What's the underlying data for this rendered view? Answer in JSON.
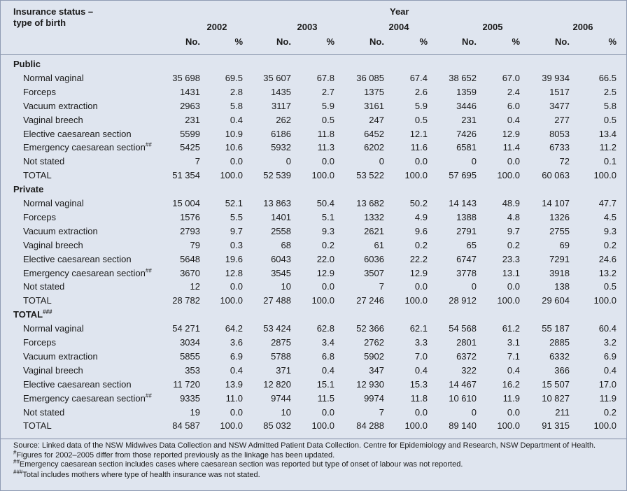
{
  "header": {
    "stub": [
      "Insurance status –",
      "type of birth"
    ],
    "group": "Year",
    "years": [
      "2002",
      "2003",
      "2004",
      "2005",
      "2006"
    ],
    "sub": [
      "No.",
      "%"
    ]
  },
  "sections": [
    {
      "title": "Public",
      "title_sup": null,
      "rows": [
        {
          "label": "Normal vaginal",
          "sup": null,
          "values": [
            "35 698",
            "69.5",
            "35 607",
            "67.8",
            "36 085",
            "67.4",
            "38 652",
            "67.0",
            "39 934",
            "66.5"
          ]
        },
        {
          "label": "Forceps",
          "sup": null,
          "values": [
            "1431",
            "2.8",
            "1435",
            "2.7",
            "1375",
            "2.6",
            "1359",
            "2.4",
            "1517",
            "2.5"
          ]
        },
        {
          "label": "Vacuum extraction",
          "sup": null,
          "values": [
            "2963",
            "5.8",
            "3117",
            "5.9",
            "3161",
            "5.9",
            "3446",
            "6.0",
            "3477",
            "5.8"
          ]
        },
        {
          "label": "Vaginal breech",
          "sup": null,
          "values": [
            "231",
            "0.4",
            "262",
            "0.5",
            "247",
            "0.5",
            "231",
            "0.4",
            "277",
            "0.5"
          ]
        },
        {
          "label": "Elective caesarean section",
          "sup": null,
          "values": [
            "5599",
            "10.9",
            "6186",
            "11.8",
            "6452",
            "12.1",
            "7426",
            "12.9",
            "8053",
            "13.4"
          ]
        },
        {
          "label": "Emergency caesarean section",
          "sup": "##",
          "values": [
            "5425",
            "10.6",
            "5932",
            "11.3",
            "6202",
            "11.6",
            "6581",
            "11.4",
            "6733",
            "11.2"
          ]
        },
        {
          "label": "Not stated",
          "sup": null,
          "values": [
            "7",
            "0.0",
            "0",
            "0.0",
            "0",
            "0.0",
            "0",
            "0.0",
            "72",
            "0.1"
          ]
        },
        {
          "label": "TOTAL",
          "sup": null,
          "values": [
            "51 354",
            "100.0",
            "52 539",
            "100.0",
            "53 522",
            "100.0",
            "57 695",
            "100.0",
            "60 063",
            "100.0"
          ]
        }
      ]
    },
    {
      "title": "Private",
      "title_sup": null,
      "rows": [
        {
          "label": "Normal vaginal",
          "sup": null,
          "values": [
            "15 004",
            "52.1",
            "13 863",
            "50.4",
            "13 682",
            "50.2",
            "14 143",
            "48.9",
            "14 107",
            "47.7"
          ]
        },
        {
          "label": "Forceps",
          "sup": null,
          "values": [
            "1576",
            "5.5",
            "1401",
            "5.1",
            "1332",
            "4.9",
            "1388",
            "4.8",
            "1326",
            "4.5"
          ]
        },
        {
          "label": "Vacuum extraction",
          "sup": null,
          "values": [
            "2793",
            "9.7",
            "2558",
            "9.3",
            "2621",
            "9.6",
            "2791",
            "9.7",
            "2755",
            "9.3"
          ]
        },
        {
          "label": "Vaginal breech",
          "sup": null,
          "values": [
            "79",
            "0.3",
            "68",
            "0.2",
            "61",
            "0.2",
            "65",
            "0.2",
            "69",
            "0.2"
          ]
        },
        {
          "label": "Elective caesarean section",
          "sup": null,
          "values": [
            "5648",
            "19.6",
            "6043",
            "22.0",
            "6036",
            "22.2",
            "6747",
            "23.3",
            "7291",
            "24.6"
          ]
        },
        {
          "label": "Emergency caesarean section",
          "sup": "##",
          "values": [
            "3670",
            "12.8",
            "3545",
            "12.9",
            "3507",
            "12.9",
            "3778",
            "13.1",
            "3918",
            "13.2"
          ]
        },
        {
          "label": "Not stated",
          "sup": null,
          "values": [
            "12",
            "0.0",
            "10",
            "0.0",
            "7",
            "0.0",
            "0",
            "0.0",
            "138",
            "0.5"
          ]
        },
        {
          "label": "TOTAL",
          "sup": null,
          "values": [
            "28 782",
            "100.0",
            "27 488",
            "100.0",
            "27 246",
            "100.0",
            "28 912",
            "100.0",
            "29 604",
            "100.0"
          ]
        }
      ]
    },
    {
      "title": "TOTAL",
      "title_sup": "###",
      "rows": [
        {
          "label": "Normal vaginal",
          "sup": null,
          "values": [
            "54 271",
            "64.2",
            "53 424",
            "62.8",
            "52 366",
            "62.1",
            "54 568",
            "61.2",
            "55 187",
            "60.4"
          ]
        },
        {
          "label": "Forceps",
          "sup": null,
          "values": [
            "3034",
            "3.6",
            "2875",
            "3.4",
            "2762",
            "3.3",
            "2801",
            "3.1",
            "2885",
            "3.2"
          ]
        },
        {
          "label": "Vacuum extraction",
          "sup": null,
          "values": [
            "5855",
            "6.9",
            "5788",
            "6.8",
            "5902",
            "7.0",
            "6372",
            "7.1",
            "6332",
            "6.9"
          ]
        },
        {
          "label": "Vaginal breech",
          "sup": null,
          "values": [
            "353",
            "0.4",
            "371",
            "0.4",
            "347",
            "0.4",
            "322",
            "0.4",
            "366",
            "0.4"
          ]
        },
        {
          "label": "Elective caesarean section",
          "sup": null,
          "values": [
            "11 720",
            "13.9",
            "12 820",
            "15.1",
            "12 930",
            "15.3",
            "14 467",
            "16.2",
            "15 507",
            "17.0"
          ]
        },
        {
          "label": "Emergency caesarean section",
          "sup": "##",
          "values": [
            "9335",
            "11.0",
            "9744",
            "11.5",
            "9974",
            "11.8",
            "10 610",
            "11.9",
            "10 827",
            "11.9"
          ]
        },
        {
          "label": "Not stated",
          "sup": null,
          "values": [
            "19",
            "0.0",
            "10",
            "0.0",
            "7",
            "0.0",
            "0",
            "0.0",
            "211",
            "0.2"
          ]
        },
        {
          "label": "TOTAL",
          "sup": null,
          "values": [
            "84 587",
            "100.0",
            "85 032",
            "100.0",
            "84 288",
            "100.0",
            "89 140",
            "100.0",
            "91 315",
            "100.0"
          ]
        }
      ]
    }
  ],
  "notes": [
    {
      "mark": null,
      "text": "Source: Linked data of the NSW Midwives Data Collection and NSW Admitted Patient Data Collection. Centre for Epidemiology and Research, NSW Department of Health."
    },
    {
      "mark": "#",
      "text": "Figures for 2002–2005 differ from those reported previously as the linkage has been updated."
    },
    {
      "mark": "##",
      "text": "Emergency caesarean section includes cases where caesarean section was reported but type of onset of labour was not reported."
    },
    {
      "mark": "###",
      "text": "Total includes mothers where type of health insurance was not stated."
    }
  ]
}
